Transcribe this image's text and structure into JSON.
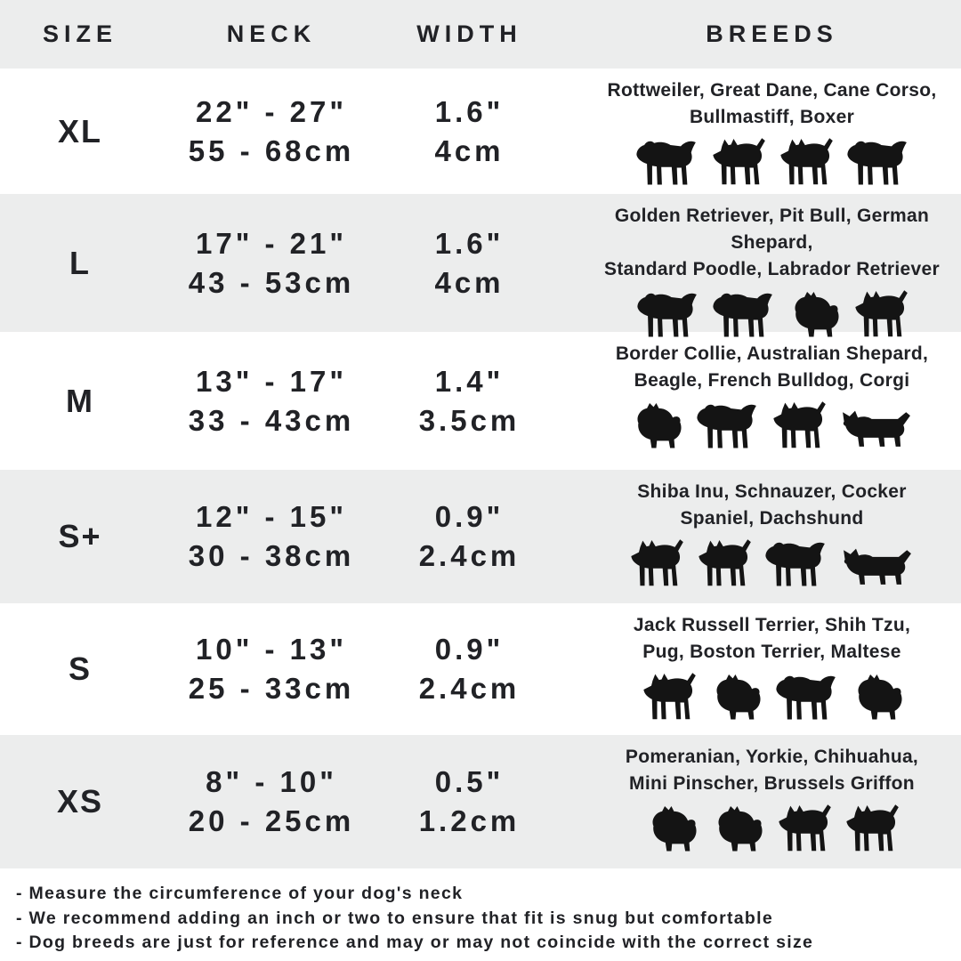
{
  "table": {
    "headers": [
      "SIZE",
      "NECK",
      "WIDTH",
      "BREEDS"
    ],
    "rows": [
      {
        "size": "XL",
        "neck_in": "22\" - 27\"",
        "neck_cm": "55 - 68cm",
        "width_in": "1.6\"",
        "width_cm": "4cm",
        "breeds_line1": "Rottweiler, Great Dane, Cane Corso,",
        "breeds_line2": "Bullmastiff, Boxer",
        "dog_icons": [
          "dog-floppy-ear",
          "dog-pointy-ear",
          "dog-pointy-ear",
          "dog-floppy-ear"
        ]
      },
      {
        "size": "L",
        "neck_in": "17\" - 21\"",
        "neck_cm": "43 - 53cm",
        "width_in": "1.6\"",
        "width_cm": "4cm",
        "breeds_line1": "Golden Retriever, Pit Bull, German Shepard,",
        "breeds_line2": "Standard Poodle, Labrador Retriever",
        "dog_icons": [
          "dog-floppy-ear",
          "dog-floppy-ear",
          "dog-fluffy",
          "dog-pointy-ear"
        ]
      },
      {
        "size": "M",
        "neck_in": "13\" - 17\"",
        "neck_cm": "33 - 43cm",
        "width_in": "1.4\"",
        "width_cm": "3.5cm",
        "breeds_line1": "Border Collie, Australian Shepard,",
        "breeds_line2": "Beagle, French Bulldog, Corgi",
        "dog_icons": [
          "dog-fluffy",
          "dog-floppy-ear",
          "dog-pointy-ear",
          "dog-long-body"
        ]
      },
      {
        "size": "S+",
        "neck_in": "12\" - 15\"",
        "neck_cm": "30 - 38cm",
        "width_in": "0.9\"",
        "width_cm": "2.4cm",
        "breeds_line1": "Shiba Inu, Schnauzer, Cocker",
        "breeds_line2": "Spaniel, Dachshund",
        "dog_icons": [
          "dog-pointy-ear",
          "dog-pointy-ear",
          "dog-floppy-ear",
          "dog-long-body"
        ]
      },
      {
        "size": "S",
        "neck_in": "10\" - 13\"",
        "neck_cm": "25 - 33cm",
        "width_in": "0.9\"",
        "width_cm": "2.4cm",
        "breeds_line1": "Jack Russell Terrier, Shih Tzu,",
        "breeds_line2": "Pug, Boston Terrier, Maltese",
        "dog_icons": [
          "dog-pointy-ear",
          "dog-fluffy",
          "dog-floppy-ear",
          "dog-fluffy"
        ]
      },
      {
        "size": "XS",
        "neck_in": "8\" - 10\"",
        "neck_cm": "20 - 25cm",
        "width_in": "0.5\"",
        "width_cm": "1.2cm",
        "breeds_line1": "Pomeranian, Yorkie, Chihuahua,",
        "breeds_line2": "Mini Pinscher, Brussels Griffon",
        "dog_icons": [
          "dog-fluffy",
          "dog-fluffy",
          "dog-pointy-ear",
          "dog-pointy-ear"
        ]
      }
    ]
  },
  "notes": [
    "- Measure the circumference of your dog's neck",
    "- We recommend adding an inch or two to ensure that fit is snug but comfortable",
    "- Dog breeds are just for reference and may or may not coincide with the correct size"
  ],
  "colors": {
    "stripe": "#eceded",
    "text": "#212226",
    "silhouette": "#141414",
    "background": "#ffffff"
  }
}
